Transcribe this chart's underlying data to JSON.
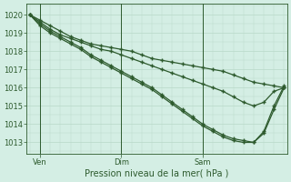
{
  "title": "",
  "xlabel": "Pression niveau de la mer( hPa )",
  "bg_color": "#d4eee4",
  "grid_color": "#b8d8c8",
  "line_color": "#2d5a2d",
  "yticks": [
    1013,
    1014,
    1015,
    1016,
    1017,
    1018,
    1019,
    1020
  ],
  "ylim": [
    1012.4,
    1020.6
  ],
  "xlim": [
    -0.3,
    25.3
  ],
  "xtick_labels": [
    "Ven",
    "Dim",
    "Sam"
  ],
  "xtick_positions": [
    1,
    9,
    17
  ],
  "vline_positions": [
    1,
    9,
    17
  ],
  "series": [
    [
      1020.0,
      1019.7,
      1019.4,
      1019.1,
      1018.8,
      1018.6,
      1018.4,
      1018.3,
      1018.2,
      1018.1,
      1018.0,
      1017.8,
      1017.6,
      1017.5,
      1017.4,
      1017.3,
      1017.2,
      1017.1,
      1017.0,
      1016.9,
      1016.7,
      1016.5,
      1016.3,
      1016.2,
      1016.1,
      1016.0
    ],
    [
      1020.0,
      1019.6,
      1019.2,
      1018.9,
      1018.7,
      1018.5,
      1018.3,
      1018.1,
      1018.0,
      1017.8,
      1017.6,
      1017.4,
      1017.2,
      1017.0,
      1016.8,
      1016.6,
      1016.4,
      1016.2,
      1016.0,
      1015.8,
      1015.5,
      1015.2,
      1015.0,
      1015.2,
      1015.8,
      1016.0
    ],
    [
      1020.0,
      1019.5,
      1019.1,
      1018.8,
      1018.5,
      1018.2,
      1017.8,
      1017.5,
      1017.2,
      1016.9,
      1016.6,
      1016.3,
      1016.0,
      1015.6,
      1015.2,
      1014.8,
      1014.4,
      1014.0,
      1013.7,
      1013.4,
      1013.2,
      1013.1,
      1013.0,
      1013.5,
      1014.8,
      1016.0
    ],
    [
      1020.0,
      1019.4,
      1019.0,
      1018.7,
      1018.4,
      1018.1,
      1017.7,
      1017.4,
      1017.1,
      1016.8,
      1016.5,
      1016.2,
      1015.9,
      1015.5,
      1015.1,
      1014.7,
      1014.3,
      1013.9,
      1013.6,
      1013.3,
      1013.1,
      1013.0,
      1013.0,
      1013.6,
      1015.0,
      1016.1
    ]
  ],
  "n_points": 26,
  "linewidth": 0.9,
  "markersize": 3.5,
  "markeredgewidth": 1.0,
  "tick_labelsize": 6,
  "xlabel_fontsize": 7
}
